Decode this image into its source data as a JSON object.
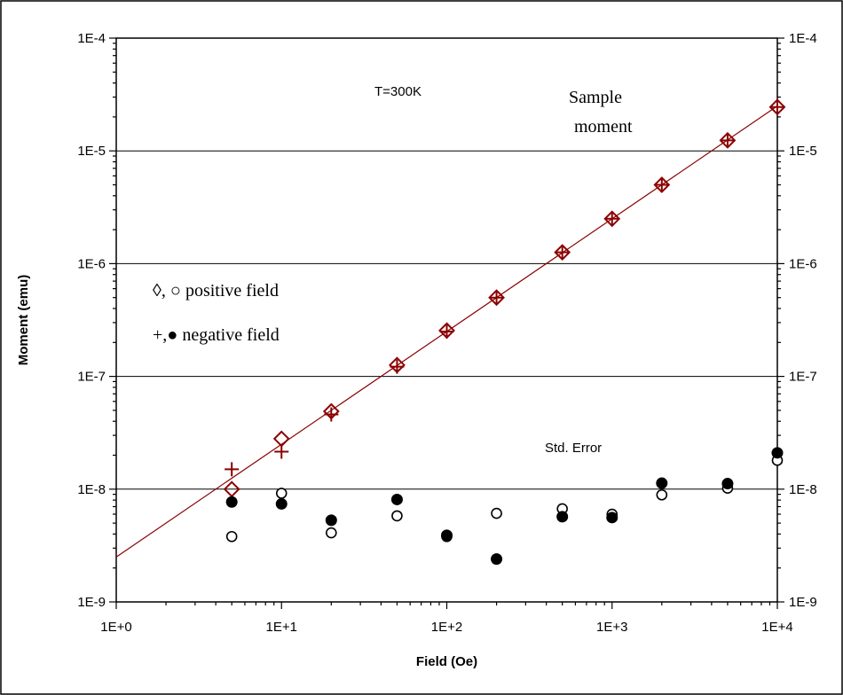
{
  "chart_data": {
    "type": "scatter",
    "xlabel": "Field (Oe)",
    "ylabel": "Moment (emu)",
    "x_scale": "log",
    "y_scale": "log",
    "xlim": [
      1,
      10000
    ],
    "ylim": [
      1e-09,
      0.0001
    ],
    "x_tick_labels": [
      "1E+0",
      "1E+1",
      "1E+2",
      "1E+3",
      "1E+4"
    ],
    "y_tick_labels": [
      "1E-9",
      "1E-8",
      "1E-7",
      "1E-6",
      "1E-5",
      "1E-4"
    ],
    "y_ticks_right": true,
    "grid": "horizontal major gridlines",
    "annotations": {
      "temperature": "T=300K",
      "sample_line1": "Sample",
      "sample_line2": "moment",
      "std_error": "Std. Error",
      "legend_positive": "◊, ○ positive field",
      "legend_negative": "+,● negative field"
    },
    "fit_line": {
      "color": "#8b0000",
      "x": [
        1,
        10000
      ],
      "y": [
        2.5e-09,
        2.5e-05
      ]
    },
    "series": [
      {
        "marker": "diamond-open",
        "color": "#8b0000",
        "x": [
          5,
          10,
          20,
          50,
          100,
          200,
          500,
          1000,
          2000,
          5000,
          10000
        ],
        "y": [
          1e-08,
          2.8e-08,
          4.9e-08,
          1.26e-07,
          2.55e-07,
          5e-07,
          1.26e-06,
          2.5e-06,
          5e-06,
          1.24e-05,
          2.45e-05
        ]
      },
      {
        "marker": "plus",
        "color": "#8b0000",
        "x": [
          5,
          10,
          20,
          50,
          100,
          200,
          500,
          1000,
          2000,
          5000,
          10000
        ],
        "y": [
          1.5e-08,
          2.15e-08,
          4.6e-08,
          1.22e-07,
          2.5e-07,
          5e-07,
          1.26e-06,
          2.5e-06,
          5e-06,
          1.24e-05,
          2.45e-05
        ]
      },
      {
        "marker": "circle-open",
        "color": "#000000",
        "x": [
          5,
          10,
          20,
          50,
          100,
          200,
          500,
          1000,
          2000,
          5000,
          10000
        ],
        "y": [
          3.8e-09,
          9.2e-09,
          4.1e-09,
          5.8e-09,
          3.8e-09,
          6.1e-09,
          6.7e-09,
          6e-09,
          8.9e-09,
          1.02e-08,
          1.8e-08
        ]
      },
      {
        "marker": "circle-filled",
        "color": "#000000",
        "x": [
          5,
          10,
          20,
          50,
          100,
          200,
          500,
          1000,
          2000,
          5000,
          10000
        ],
        "y": [
          7.7e-09,
          7.4e-09,
          5.3e-09,
          8.1e-09,
          3.9e-09,
          2.4e-09,
          5.7e-09,
          5.6e-09,
          1.13e-08,
          1.12e-08,
          2.1e-08
        ]
      }
    ]
  }
}
